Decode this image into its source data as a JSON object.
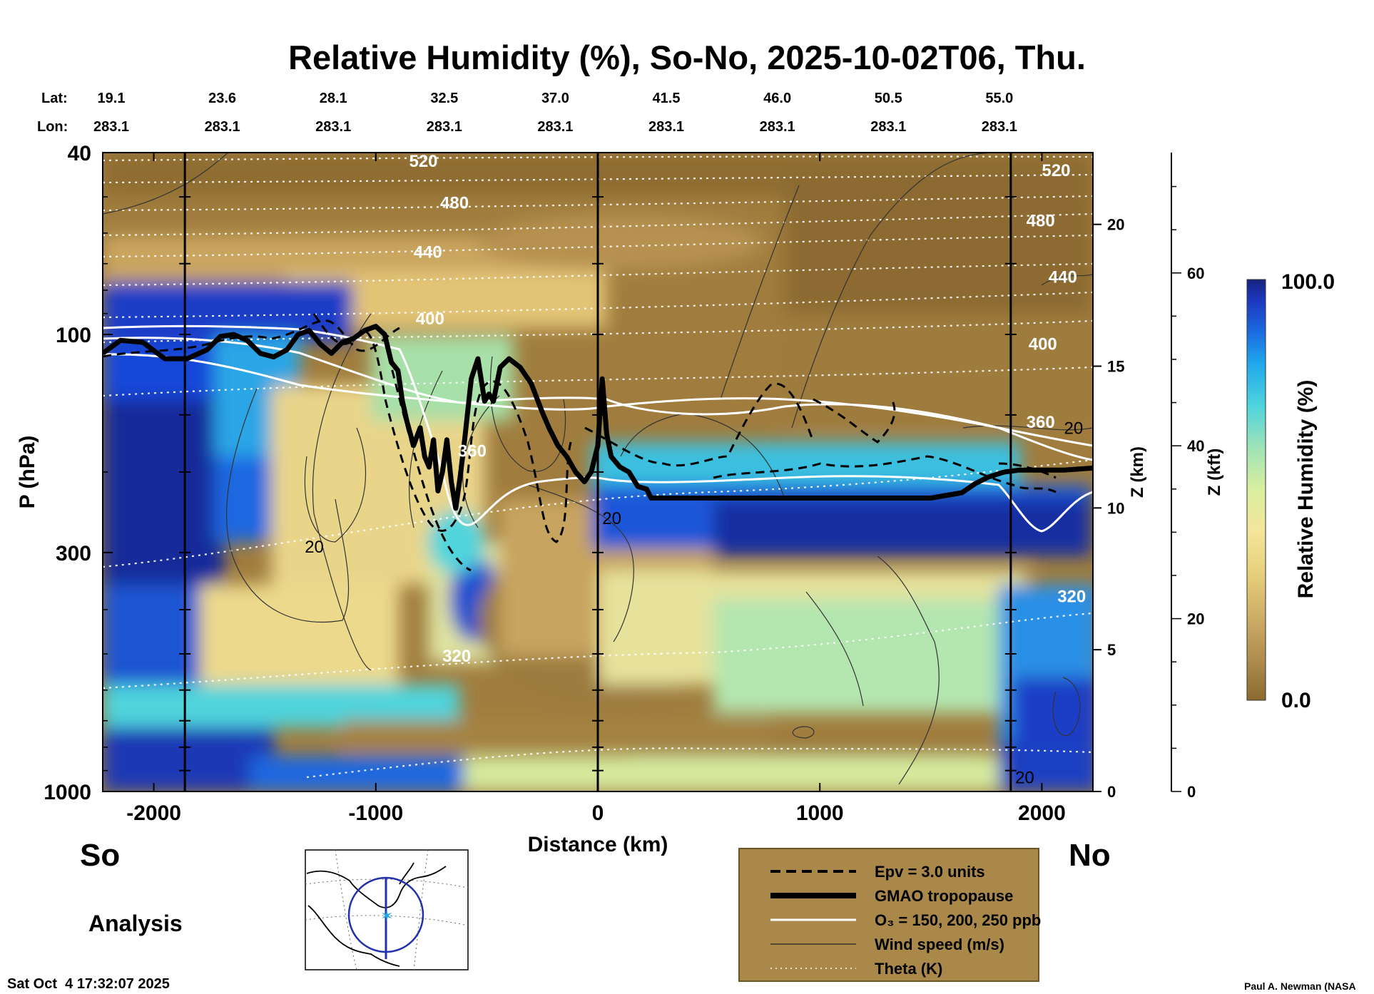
{
  "chart_data": {
    "type": "heatmap",
    "title": "Relative Humidity (%), So-No, 2025-10-02T06, Thu.",
    "xlabel": "Distance (km)",
    "ylabel": "P (hPa)",
    "z_km_label": "Z (km)",
    "z_kft_label": "Z (kft)",
    "colorbar_label": "Relative Humidity (%)",
    "colorbar_range": [
      "0.0",
      "100.0"
    ],
    "colorbar_colors": [
      "#8a6a2f",
      "#a9874a",
      "#c8a862",
      "#e6cf7a",
      "#f4e59a",
      "#d9ef9f",
      "#9fe3b6",
      "#4fd4dc",
      "#1fa8ec",
      "#1a67e0",
      "#1d37c0",
      "#15247f"
    ],
    "x_range": [
      -2230,
      2230
    ],
    "y_range_hpa": [
      1000,
      40
    ],
    "y_scale": "log",
    "x_ticks": [
      "-2000",
      "-1000",
      "0",
      "1000",
      "2000"
    ],
    "x_tick_values": [
      -2000,
      -1000,
      0,
      1000,
      2000
    ],
    "y_ticks": [
      "40",
      "100",
      "300",
      "1000"
    ],
    "y_tick_values": [
      40,
      100,
      300,
      1000
    ],
    "z_km_ticks": [
      "0",
      "5",
      "10",
      "15",
      "20"
    ],
    "z_kft_ticks": [
      "0",
      "20",
      "40",
      "60"
    ],
    "lat_label": "Lat:",
    "lon_label": "Lon:",
    "stations": [
      {
        "lat": "19.1",
        "lon": "283.1",
        "x": -2230
      },
      {
        "lat": "23.6",
        "lon": "283.1",
        "x": -1730
      },
      {
        "lat": "28.1",
        "lon": "283.1",
        "x": -1230
      },
      {
        "lat": "32.5",
        "lon": "283.1",
        "x": -730
      },
      {
        "lat": "37.0",
        "lon": "283.1",
        "x": -230
      },
      {
        "lat": "41.5",
        "lon": "283.1",
        "x": 270
      },
      {
        "lat": "46.0",
        "lon": "283.1",
        "x": 770
      },
      {
        "lat": "50.5",
        "lon": "283.1",
        "x": 1270
      },
      {
        "lat": "55.0",
        "lon": "283.1",
        "x": 1770
      }
    ],
    "vertical_markers_km": [
      -1860,
      0,
      1860
    ],
    "theta_labels": [
      {
        "text": "520",
        "x": -850,
        "p": 43
      },
      {
        "text": "480",
        "x": -710,
        "p": 53
      },
      {
        "text": "440",
        "x": -830,
        "p": 68
      },
      {
        "text": "400",
        "x": -820,
        "p": 95
      },
      {
        "text": "360",
        "x": -630,
        "p": 185
      },
      {
        "text": "320",
        "x": -700,
        "p": 520
      },
      {
        "text": "520",
        "x": 2000,
        "p": 45
      },
      {
        "text": "480",
        "x": 1930,
        "p": 58
      },
      {
        "text": "440",
        "x": 2030,
        "p": 77
      },
      {
        "text": "400",
        "x": 1940,
        "p": 108
      },
      {
        "text": "360",
        "x": 1930,
        "p": 160
      },
      {
        "text": "320",
        "x": 2070,
        "p": 385
      }
    ],
    "wind_labels": [
      {
        "text": "20",
        "x": -1320,
        "p": 300
      },
      {
        "text": "20",
        "x": 20,
        "p": 260
      },
      {
        "text": "20",
        "x": 2100,
        "p": 165
      },
      {
        "text": "20",
        "x": 1880,
        "p": 960
      }
    ],
    "tropopause": {
      "x": [
        -2230,
        -2150,
        -2050,
        -1950,
        -1850,
        -1760,
        -1700,
        -1640,
        -1580,
        -1520,
        -1460,
        -1400,
        -1350,
        -1300,
        -1250,
        -1200,
        -1150,
        -1100,
        -1050,
        -1000,
        -960,
        -930,
        -900,
        -880,
        -860,
        -830,
        -800,
        -780,
        -760,
        -740,
        -720,
        -700,
        -680,
        -660,
        -640,
        -620,
        -600,
        -570,
        -540,
        -510,
        -490,
        -470,
        -440,
        -400,
        -350,
        -300,
        -250,
        -220,
        -180,
        -140,
        -100,
        -60,
        -30,
        0,
        20,
        40,
        60,
        80,
        100,
        140,
        180,
        220,
        240,
        400,
        800,
        1200,
        1500,
        1640,
        1700,
        1760,
        1830,
        1900,
        2100,
        2230
      ],
      "p": [
        110,
        103,
        104,
        113,
        113,
        108,
        101,
        100,
        103,
        110,
        112,
        108,
        100,
        98,
        105,
        110,
        104,
        102,
        98,
        96,
        100,
        115,
        120,
        140,
        155,
        175,
        160,
        185,
        195,
        170,
        220,
        200,
        170,
        210,
        240,
        205,
        170,
        125,
        113,
        140,
        135,
        140,
        118,
        113,
        118,
        128,
        148,
        160,
        175,
        185,
        200,
        210,
        200,
        175,
        125,
        165,
        185,
        190,
        195,
        200,
        215,
        218,
        228,
        228,
        228,
        228,
        228,
        222,
        212,
        205,
        200,
        198,
        198,
        196
      ]
    },
    "legend": [
      {
        "label": "Epv = 3.0 units",
        "style": "dashed-thick"
      },
      {
        "label": "GMAO tropopause",
        "style": "solid-thick"
      },
      {
        "label_html": "O₃ = 150, 200, 250 ppb",
        "label": "O3 = 150, 200, 250 ppb",
        "style": "white"
      },
      {
        "label": "Wind speed (m/s)",
        "style": "thin"
      },
      {
        "label": "Theta (K)",
        "style": "dotted-white"
      }
    ]
  },
  "labels": {
    "south": "So",
    "north": "No",
    "analysis": "Analysis",
    "timestamp": "Sat Oct  4 17:32:07 2025",
    "credit": "Paul A. Newman (NASA"
  }
}
